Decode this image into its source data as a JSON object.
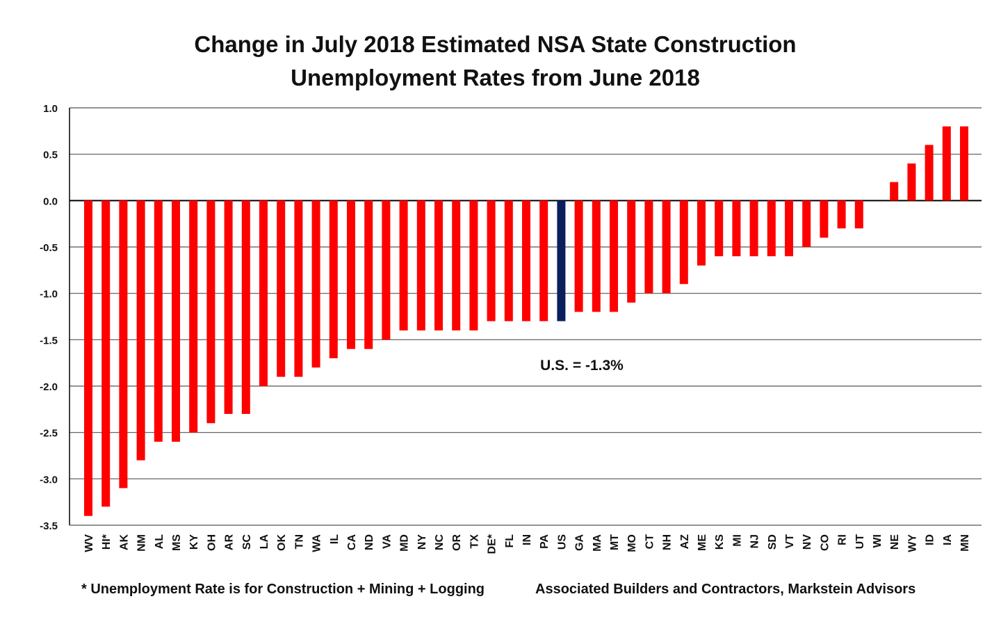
{
  "chart_data": {
    "type": "bar",
    "title_line1": "Change in July 2018 Estimated NSA State Construction",
    "title_line2": "Unemployment Rates from June 2018",
    "xlabel": "",
    "ylabel": "",
    "ylim": [
      -3.5,
      1.0
    ],
    "yticks": [
      "1.0",
      "0.5",
      "0.0",
      "-0.5",
      "-1.0",
      "-1.5",
      "-2.0",
      "-2.5",
      "-3.0",
      "-3.5"
    ],
    "ytick_values": [
      1.0,
      0.5,
      0.0,
      -0.5,
      -1.0,
      -1.5,
      -2.0,
      -2.5,
      -3.0,
      -3.5
    ],
    "grid": true,
    "categories": [
      "WV",
      "HI*",
      "AK",
      "NM",
      "AL",
      "MS",
      "KY",
      "OH",
      "AR",
      "SC",
      "LA",
      "OK",
      "TN",
      "WA",
      "IL",
      "CA",
      "ND",
      "VA",
      "MD",
      "NY",
      "NC",
      "OR",
      "TX",
      "DE*",
      "FL",
      "IN",
      "PA",
      "US",
      "GA",
      "MA",
      "MT",
      "MO",
      "CT",
      "NH",
      "AZ",
      "ME",
      "KS",
      "MI",
      "NJ",
      "SD",
      "VT",
      "NV",
      "CO",
      "RI",
      "UT",
      "WI",
      "NE",
      "WY",
      "ID",
      "IA",
      "MN"
    ],
    "values": [
      -3.4,
      -3.3,
      -3.1,
      -2.8,
      -2.6,
      -2.6,
      -2.5,
      -2.4,
      -2.3,
      -2.3,
      -2.0,
      -1.9,
      -1.9,
      -1.8,
      -1.7,
      -1.6,
      -1.6,
      -1.5,
      -1.4,
      -1.4,
      -1.4,
      -1.4,
      -1.4,
      -1.3,
      -1.3,
      -1.3,
      -1.3,
      -1.3,
      -1.2,
      -1.2,
      -1.2,
      -1.1,
      -1.0,
      -1.0,
      -0.9,
      -0.7,
      -0.6,
      -0.6,
      -0.6,
      -0.6,
      -0.6,
      -0.5,
      -0.4,
      -0.3,
      -0.3,
      0.0,
      0.2,
      0.4,
      0.6,
      0.8,
      0.8
    ],
    "highlight_category": "US",
    "colors": {
      "bar": "#ff0000",
      "highlight": "#0b1f5c"
    },
    "annotation": "U.S. = -1.3%",
    "footnote": "* Unemployment Rate is for Construction + Mining + Logging",
    "source": "Associated Builders and Contractors, Markstein Advisors"
  }
}
